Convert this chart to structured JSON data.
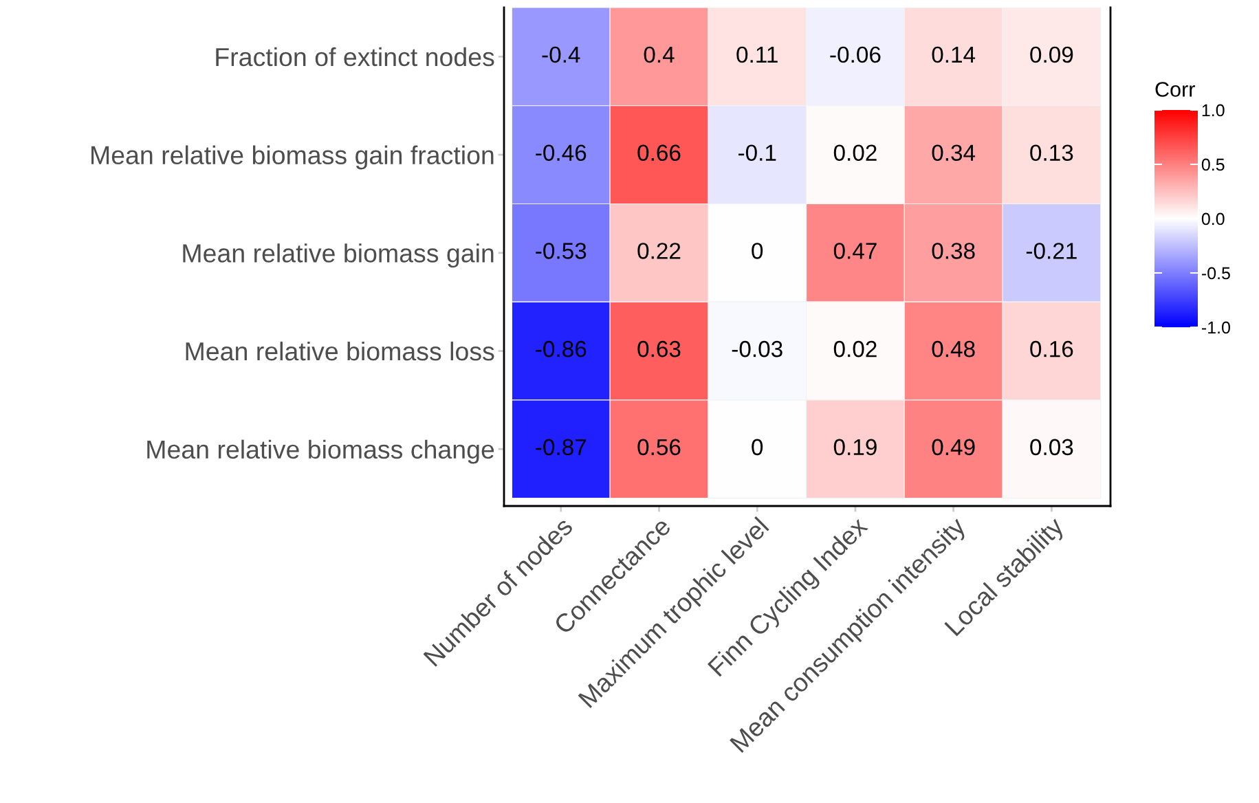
{
  "chart_data": {
    "type": "heatmap",
    "categories": [
      "Number of nodes",
      "Connectance",
      "Maximum trophic level",
      "Finn Cycling Index",
      "Mean consumption intensity",
      "Local stability"
    ],
    "y_categories": [
      "Fraction of extinct nodes",
      "Mean relative biomass gain fraction",
      "Mean relative biomass gain",
      "Mean relative biomass loss",
      "Mean relative biomass change"
    ],
    "cells": [
      [
        -0.4,
        0.4,
        0.11,
        -0.06,
        0.14,
        0.09
      ],
      [
        -0.46,
        0.66,
        -0.1,
        0.02,
        0.34,
        0.13
      ],
      [
        -0.53,
        0.22,
        0,
        0.47,
        0.38,
        -0.21
      ],
      [
        -0.86,
        0.63,
        -0.03,
        0.02,
        0.48,
        0.16
      ],
      [
        -0.87,
        0.56,
        0,
        0.19,
        0.49,
        0.03
      ]
    ],
    "colors": [
      "#0000ff",
      "#ffffff",
      "#ff0000"
    ],
    "clabel": "Corr",
    "clim": [
      -1,
      1
    ],
    "cticks": [
      {
        "value": -1,
        "label": "-1.0"
      },
      {
        "value": -0.5,
        "label": "-0.5"
      },
      {
        "value": 0,
        "label": "0.0"
      },
      {
        "value": 0.5,
        "label": "0.5"
      },
      {
        "value": 1,
        "label": "1.0"
      }
    ],
    "data_labels": true,
    "grid": false
  }
}
